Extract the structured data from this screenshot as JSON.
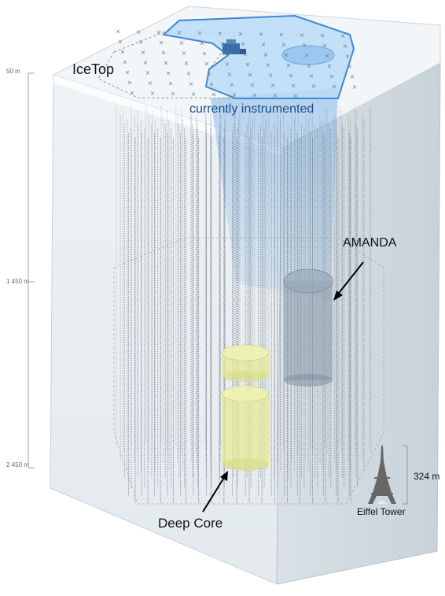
{
  "labels": {
    "icetop": "IceTop",
    "instrumented": "currently instrumented",
    "amanda": "AMANDA",
    "deep_core": "Deep Core",
    "eiffel_tower": "Eiffel Tower",
    "height_324": "324 m"
  },
  "depth_scale": {
    "d50": "50 m",
    "d1450": "1 450 m",
    "d2450": "2 450 m"
  },
  "colors": {
    "ice_top": "#f2f5f7",
    "ice_front": "#e6edf1",
    "ice_side": "#d3dce2",
    "instrumented_fill": "#b9dcf7",
    "instrumented_stroke": "#3f86d6",
    "amanda_cylinder": "#8a9aab",
    "deep_core_cylinder": "#e6eb9a",
    "string_color": "#5f666c"
  }
}
